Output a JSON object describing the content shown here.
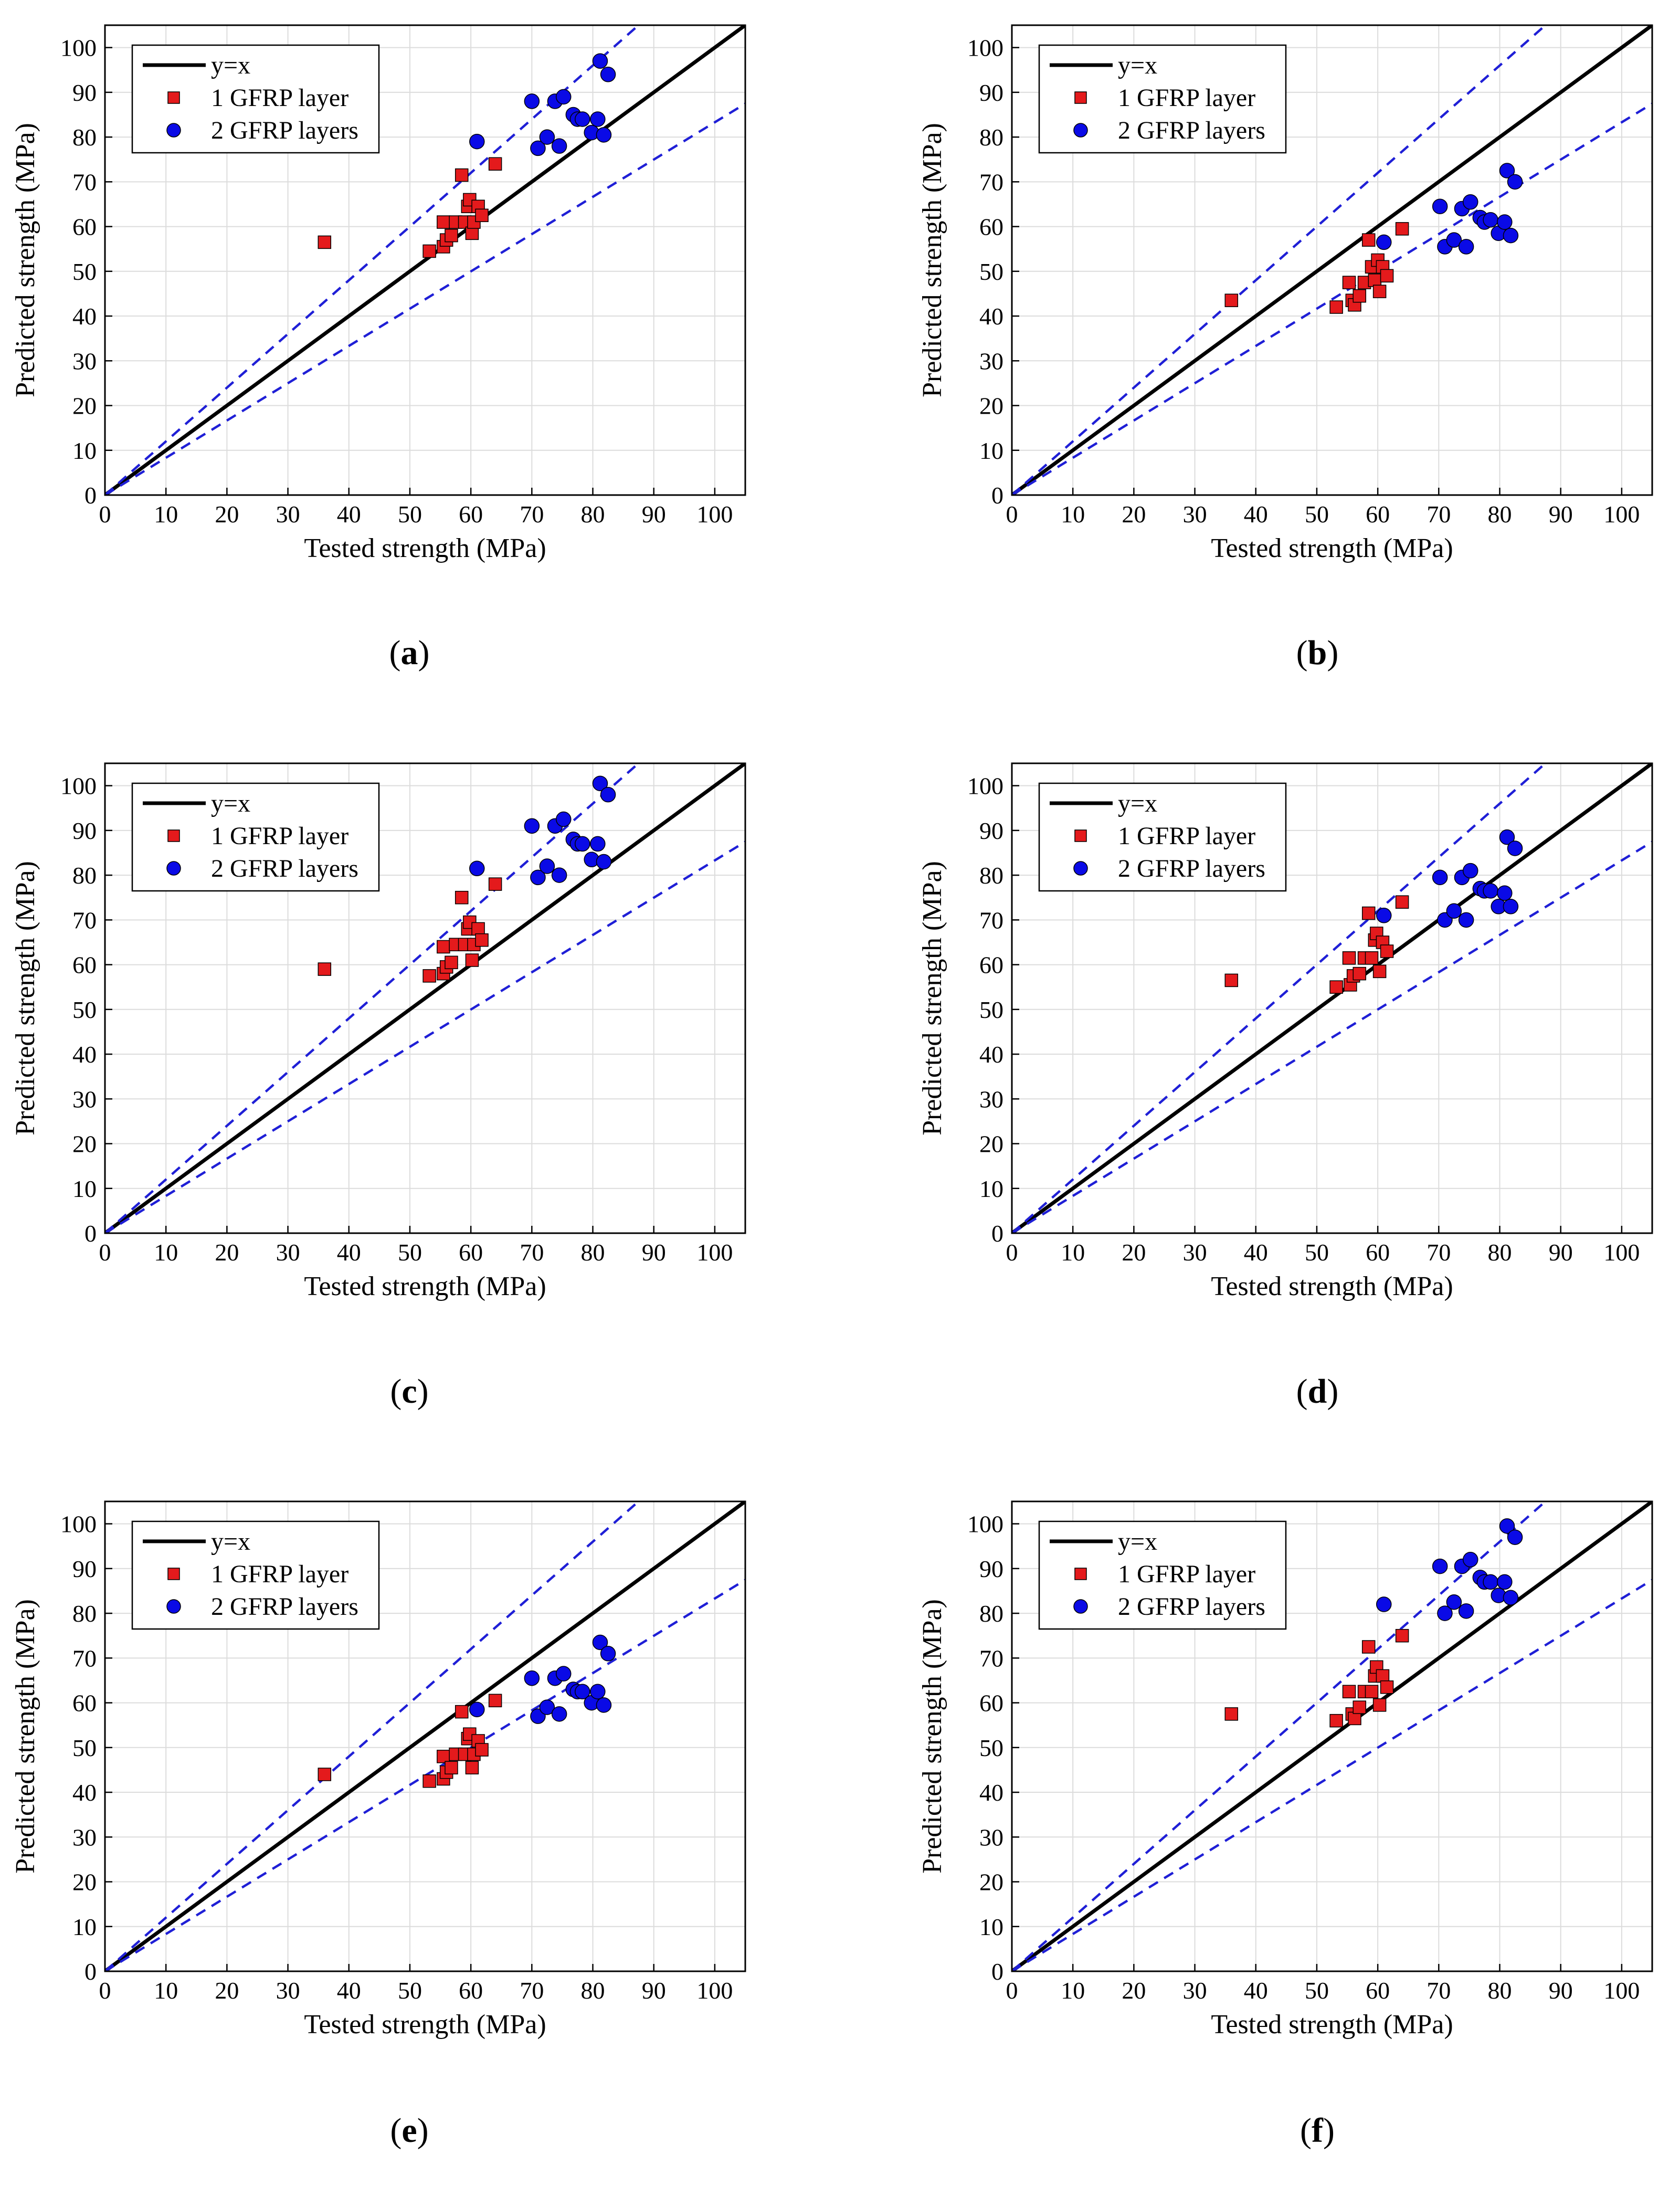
{
  "figure": {
    "caption_labels": [
      "a",
      "b",
      "c",
      "d",
      "e",
      "f"
    ]
  },
  "colors": {
    "one_layer": "#e41a1c",
    "two_layers": "#0a0ae6",
    "identity_line": "#000000",
    "bounds": "#1f1fd6",
    "grid": "#dcdcdc"
  },
  "chart_data": [
    {
      "type": "scatter",
      "panel": "a",
      "xlabel": "Tested strength (MPa)",
      "ylabel": "Predicted strength (MPa)",
      "xlim": [
        0,
        105
      ],
      "ylim": [
        0,
        105
      ],
      "xticks": [
        0,
        10,
        20,
        30,
        40,
        50,
        60,
        70,
        80,
        90,
        100
      ],
      "yticks": [
        0,
        10,
        20,
        30,
        40,
        50,
        60,
        70,
        80,
        90,
        100
      ],
      "grid": true,
      "legend_position": "top-left",
      "lines": [
        {
          "name": "y=x",
          "slope": 1.0,
          "style": "solid"
        },
        {
          "name": "",
          "slope": 1.2,
          "style": "dashed"
        },
        {
          "name": "",
          "slope": 0.833,
          "style": "dashed"
        }
      ],
      "series": [
        {
          "name": "1 GFRP layer",
          "marker": "square",
          "points": [
            [
              36,
              56.5
            ],
            [
              53.2,
              54.5
            ],
            [
              55.5,
              61
            ],
            [
              55.5,
              55.5
            ],
            [
              56,
              57
            ],
            [
              56.8,
              58
            ],
            [
              57.5,
              61
            ],
            [
              58.5,
              71.5
            ],
            [
              59,
              61
            ],
            [
              59.5,
              64.5
            ],
            [
              59.8,
              66
            ],
            [
              60.2,
              58.5
            ],
            [
              60.5,
              61
            ],
            [
              61.2,
              64.5
            ],
            [
              61.8,
              62.5
            ],
            [
              64,
              74
            ]
          ]
        },
        {
          "name": "2 GFRP layers",
          "marker": "circle",
          "points": [
            [
              61,
              79
            ],
            [
              70,
              88
            ],
            [
              71,
              77.5
            ],
            [
              72.5,
              80
            ],
            [
              73.8,
              88
            ],
            [
              74.5,
              78
            ],
            [
              75.2,
              89
            ],
            [
              76.8,
              85
            ],
            [
              77.5,
              84
            ],
            [
              78.3,
              84
            ],
            [
              79.8,
              81
            ],
            [
              80.8,
              84
            ],
            [
              81.2,
              97
            ],
            [
              81.8,
              80.5
            ],
            [
              82.5,
              94
            ]
          ]
        }
      ]
    },
    {
      "type": "scatter",
      "panel": "b",
      "xlabel": "Tested strength (MPa)",
      "ylabel": "Predicted strength (MPa)",
      "xlim": [
        0,
        105
      ],
      "ylim": [
        0,
        105
      ],
      "xticks": [
        0,
        10,
        20,
        30,
        40,
        50,
        60,
        70,
        80,
        90,
        100
      ],
      "yticks": [
        0,
        10,
        20,
        30,
        40,
        50,
        60,
        70,
        80,
        90,
        100
      ],
      "grid": true,
      "legend_position": "top-left",
      "lines": [
        {
          "name": "y=x",
          "slope": 1.0,
          "style": "solid"
        },
        {
          "name": "",
          "slope": 1.2,
          "style": "dashed"
        },
        {
          "name": "",
          "slope": 0.833,
          "style": "dashed"
        }
      ],
      "series": [
        {
          "name": "1 GFRP layer",
          "marker": "square",
          "points": [
            [
              36,
              43.5
            ],
            [
              53.2,
              42
            ],
            [
              55.3,
              47.5
            ],
            [
              55.8,
              43.5
            ],
            [
              56.2,
              42.5
            ],
            [
              57,
              44.5
            ],
            [
              57.8,
              47.5
            ],
            [
              58.5,
              57
            ],
            [
              59,
              51
            ],
            [
              59.5,
              48
            ],
            [
              60,
              52.5
            ],
            [
              60.3,
              45.5
            ],
            [
              60.8,
              51
            ],
            [
              61.5,
              49
            ],
            [
              64,
              59.5
            ]
          ]
        },
        {
          "name": "2 GFRP layers",
          "marker": "circle",
          "points": [
            [
              61,
              56.5
            ],
            [
              70.2,
              64.5
            ],
            [
              71,
              55.5
            ],
            [
              72.5,
              57
            ],
            [
              73.8,
              64
            ],
            [
              74.5,
              55.5
            ],
            [
              75.2,
              65.5
            ],
            [
              76.8,
              62
            ],
            [
              77.5,
              61
            ],
            [
              78.5,
              61.5
            ],
            [
              79.8,
              58.5
            ],
            [
              80.8,
              61
            ],
            [
              81.2,
              72.5
            ],
            [
              81.8,
              58
            ],
            [
              82.5,
              70
            ]
          ]
        }
      ]
    },
    {
      "type": "scatter",
      "panel": "c",
      "xlabel": "Tested strength (MPa)",
      "ylabel": "Predicted strength (MPa)",
      "xlim": [
        0,
        105
      ],
      "ylim": [
        0,
        105
      ],
      "xticks": [
        0,
        10,
        20,
        30,
        40,
        50,
        60,
        70,
        80,
        90,
        100
      ],
      "yticks": [
        0,
        10,
        20,
        30,
        40,
        50,
        60,
        70,
        80,
        90,
        100
      ],
      "grid": true,
      "legend_position": "top-left",
      "lines": [
        {
          "name": "y=x",
          "slope": 1.0,
          "style": "solid"
        },
        {
          "name": "",
          "slope": 1.2,
          "style": "dashed"
        },
        {
          "name": "",
          "slope": 0.833,
          "style": "dashed"
        }
      ],
      "series": [
        {
          "name": "1 GFRP layer",
          "marker": "square",
          "points": [
            [
              36,
              59
            ],
            [
              53.2,
              57.5
            ],
            [
              55.5,
              64
            ],
            [
              55.5,
              58
            ],
            [
              56,
              59.5
            ],
            [
              56.8,
              60.5
            ],
            [
              57.5,
              64.5
            ],
            [
              58.5,
              75
            ],
            [
              59,
              64.5
            ],
            [
              59.5,
              68
            ],
            [
              59.8,
              69.5
            ],
            [
              60.2,
              61
            ],
            [
              60.5,
              64.5
            ],
            [
              61.2,
              68
            ],
            [
              61.8,
              65.5
            ],
            [
              64,
              78
            ]
          ]
        },
        {
          "name": "2 GFRP layers",
          "marker": "circle",
          "points": [
            [
              61,
              81.5
            ],
            [
              70,
              91
            ],
            [
              71,
              79.5
            ],
            [
              72.5,
              82
            ],
            [
              73.8,
              91
            ],
            [
              74.5,
              80
            ],
            [
              75.2,
              92.5
            ],
            [
              76.8,
              88
            ],
            [
              77.5,
              87
            ],
            [
              78.3,
              87
            ],
            [
              79.8,
              83.5
            ],
            [
              80.8,
              87
            ],
            [
              81.2,
              100.5
            ],
            [
              81.8,
              83
            ],
            [
              82.5,
              98
            ]
          ]
        }
      ]
    },
    {
      "type": "scatter",
      "panel": "d",
      "xlabel": "Tested strength (MPa)",
      "ylabel": "Predicted strength (MPa)",
      "xlim": [
        0,
        105
      ],
      "ylim": [
        0,
        105
      ],
      "xticks": [
        0,
        10,
        20,
        30,
        40,
        50,
        60,
        70,
        80,
        90,
        100
      ],
      "yticks": [
        0,
        10,
        20,
        30,
        40,
        50,
        60,
        70,
        80,
        90,
        100
      ],
      "grid": true,
      "legend_position": "top-left",
      "lines": [
        {
          "name": "y=x",
          "slope": 1.0,
          "style": "solid"
        },
        {
          "name": "",
          "slope": 1.2,
          "style": "dashed"
        },
        {
          "name": "",
          "slope": 0.833,
          "style": "dashed"
        }
      ],
      "series": [
        {
          "name": "1 GFRP layer",
          "marker": "square",
          "points": [
            [
              36,
              56.5
            ],
            [
              53.2,
              55
            ],
            [
              55.3,
              61.5
            ],
            [
              55.5,
              55.5
            ],
            [
              56,
              57.5
            ],
            [
              57,
              58
            ],
            [
              57.8,
              61.5
            ],
            [
              58.5,
              71.5
            ],
            [
              59,
              61.5
            ],
            [
              59.5,
              65.5
            ],
            [
              59.8,
              67
            ],
            [
              60.3,
              58.5
            ],
            [
              60.8,
              65
            ],
            [
              61.5,
              63
            ],
            [
              64,
              74
            ]
          ]
        },
        {
          "name": "2 GFRP layers",
          "marker": "circle",
          "points": [
            [
              61,
              71
            ],
            [
              70.2,
              79.5
            ],
            [
              71,
              70
            ],
            [
              72.5,
              72
            ],
            [
              73.8,
              79.5
            ],
            [
              74.5,
              70
            ],
            [
              75.2,
              81
            ],
            [
              76.8,
              77
            ],
            [
              77.5,
              76.5
            ],
            [
              78.5,
              76.5
            ],
            [
              79.8,
              73
            ],
            [
              80.8,
              76
            ],
            [
              81.2,
              88.5
            ],
            [
              81.8,
              73
            ],
            [
              82.5,
              86
            ]
          ]
        }
      ]
    },
    {
      "type": "scatter",
      "panel": "e",
      "xlabel": "Tested strength (MPa)",
      "ylabel": "Predicted strength (MPa)",
      "xlim": [
        0,
        105
      ],
      "ylim": [
        0,
        105
      ],
      "xticks": [
        0,
        10,
        20,
        30,
        40,
        50,
        60,
        70,
        80,
        90,
        100
      ],
      "yticks": [
        0,
        10,
        20,
        30,
        40,
        50,
        60,
        70,
        80,
        90,
        100
      ],
      "grid": true,
      "legend_position": "top-left",
      "lines": [
        {
          "name": "y=x",
          "slope": 1.0,
          "style": "solid"
        },
        {
          "name": "",
          "slope": 1.2,
          "style": "dashed"
        },
        {
          "name": "",
          "slope": 0.833,
          "style": "dashed"
        }
      ],
      "series": [
        {
          "name": "1 GFRP layer",
          "marker": "square",
          "points": [
            [
              36,
              44
            ],
            [
              53.2,
              42.5
            ],
            [
              55.5,
              48
            ],
            [
              55.5,
              43
            ],
            [
              56,
              44.5
            ],
            [
              56.8,
              45.5
            ],
            [
              57.5,
              48.5
            ],
            [
              58.5,
              58
            ],
            [
              59,
              48.5
            ],
            [
              59.5,
              52
            ],
            [
              59.8,
              53
            ],
            [
              60.2,
              45.5
            ],
            [
              60.5,
              48.5
            ],
            [
              61.2,
              51.5
            ],
            [
              61.8,
              49.5
            ],
            [
              64,
              60.5
            ]
          ]
        },
        {
          "name": "2 GFRP layers",
          "marker": "circle",
          "points": [
            [
              61,
              58.5
            ],
            [
              70,
              65.5
            ],
            [
              71,
              57
            ],
            [
              72.5,
              59
            ],
            [
              73.8,
              65.5
            ],
            [
              74.5,
              57.5
            ],
            [
              75.2,
              66.5
            ],
            [
              76.8,
              63
            ],
            [
              77.5,
              62.5
            ],
            [
              78.3,
              62.5
            ],
            [
              79.8,
              60
            ],
            [
              80.8,
              62.5
            ],
            [
              81.2,
              73.5
            ],
            [
              81.8,
              59.5
            ],
            [
              82.5,
              71
            ]
          ]
        }
      ]
    },
    {
      "type": "scatter",
      "panel": "f",
      "xlabel": "Tested strength (MPa)",
      "ylabel": "Predicted strength (MPa)",
      "xlim": [
        0,
        105
      ],
      "ylim": [
        0,
        105
      ],
      "xticks": [
        0,
        10,
        20,
        30,
        40,
        50,
        60,
        70,
        80,
        90,
        100
      ],
      "yticks": [
        0,
        10,
        20,
        30,
        40,
        50,
        60,
        70,
        80,
        90,
        100
      ],
      "grid": true,
      "legend_position": "top-left",
      "lines": [
        {
          "name": "y=x",
          "slope": 1.0,
          "style": "solid"
        },
        {
          "name": "",
          "slope": 1.2,
          "style": "dashed"
        },
        {
          "name": "",
          "slope": 0.833,
          "style": "dashed"
        }
      ],
      "series": [
        {
          "name": "1 GFRP layer",
          "marker": "square",
          "points": [
            [
              36,
              57.5
            ],
            [
              53.2,
              56
            ],
            [
              55.3,
              62.5
            ],
            [
              55.8,
              57.5
            ],
            [
              56.2,
              56.5
            ],
            [
              57,
              59
            ],
            [
              57.8,
              62.5
            ],
            [
              58.5,
              72.5
            ],
            [
              59,
              62.5
            ],
            [
              59.5,
              66
            ],
            [
              59.8,
              68
            ],
            [
              60.3,
              59.5
            ],
            [
              60.8,
              66
            ],
            [
              61.5,
              63.5
            ],
            [
              64,
              75
            ]
          ]
        },
        {
          "name": "2 GFRP layers",
          "marker": "circle",
          "points": [
            [
              61,
              82
            ],
            [
              70.2,
              90.5
            ],
            [
              71,
              80
            ],
            [
              72.5,
              82.5
            ],
            [
              73.8,
              90.5
            ],
            [
              74.5,
              80.5
            ],
            [
              75.2,
              92
            ],
            [
              76.8,
              88
            ],
            [
              77.5,
              87
            ],
            [
              78.5,
              87
            ],
            [
              79.8,
              84
            ],
            [
              80.8,
              87
            ],
            [
              81.2,
              99.5
            ],
            [
              81.8,
              83.5
            ],
            [
              82.5,
              97
            ]
          ]
        }
      ]
    }
  ]
}
